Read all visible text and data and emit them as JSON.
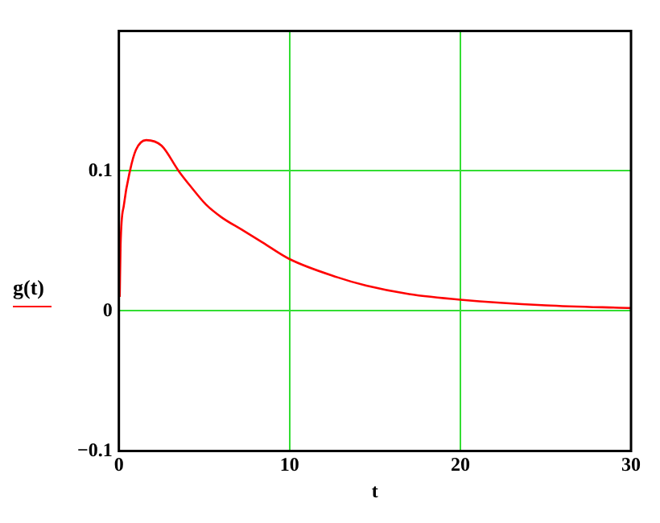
{
  "chart_data": {
    "type": "line",
    "xlabel": "t",
    "x": [
      0.05,
      0.1,
      0.3,
      0.65,
      1.0,
      1.6,
      2.5,
      3.5,
      4.2,
      5.1,
      6,
      7.2,
      8.4,
      10,
      12.8,
      14.5,
      17,
      20,
      25,
      30
    ],
    "series": [
      {
        "name": "g(t)",
        "color": "#ff0000",
        "values": [
          0.01,
          0.047,
          0.076,
          0.1,
          0.115,
          0.122,
          0.118,
          0.1,
          0.089,
          0.076,
          0.067,
          0.058,
          0.049,
          0.037,
          0.024,
          0.018,
          0.012,
          0.008,
          0.004,
          0.002
        ]
      }
    ],
    "xlim": [
      0,
      30
    ],
    "xticks": [
      0,
      10,
      20,
      30
    ],
    "ylim": [
      -0.1,
      0.2
    ],
    "yticks": [
      {
        "value": -0.1,
        "label": "−0.1"
      },
      0,
      0.1
    ],
    "grid": true,
    "legend": "left",
    "marker": "none",
    "line_style": "solid"
  }
}
